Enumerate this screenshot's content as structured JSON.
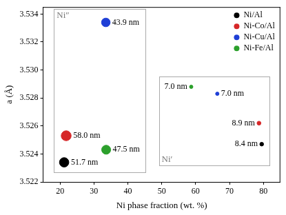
{
  "chart_data": {
    "type": "scatter",
    "x_label": "Ni phase fraction (wt. %)",
    "y_label": "a (Å)",
    "xlim": [
      15,
      85
    ],
    "xticks": [
      20,
      30,
      40,
      50,
      60,
      70,
      80
    ],
    "ylim": [
      3.522,
      3.5345
    ],
    "yticks": [
      3.522,
      3.524,
      3.526,
      3.528,
      {
        "value": 3.53,
        "label": "3.530"
      },
      3.532,
      3.534
    ],
    "grid": false,
    "legend": "upper right",
    "marker": "circle",
    "series": [
      {
        "name": "Ni/Al",
        "color": "#000000",
        "x": [
          21.2,
          79.5
        ],
        "values": [
          3.5234,
          3.5247
        ],
        "sizes": [
          51.7,
          8.4
        ],
        "point_labels": [
          "51.7 nm",
          "8.4 nm"
        ],
        "phases": [
          "Ni″",
          "Ni′"
        ]
      },
      {
        "name": "Ni-Co/Al",
        "color": "#d62728",
        "x": [
          21.8,
          78.7
        ],
        "values": [
          3.5253,
          3.5262
        ],
        "sizes": [
          58.0,
          8.9
        ],
        "point_labels": [
          "58.0 nm",
          "8.9 nm"
        ],
        "phases": [
          "Ni″",
          "Ni′"
        ]
      },
      {
        "name": "Ni-Cu/Al",
        "color": "#1f3fd6",
        "x": [
          33.5,
          66.4
        ],
        "values": [
          3.5334,
          3.5283
        ],
        "sizes": [
          43.9,
          7.0
        ],
        "point_labels": [
          "43.9 nm",
          "7.0 nm"
        ],
        "phases": [
          "Ni″",
          "Ni′"
        ]
      },
      {
        "name": "Ni-Fe/Al",
        "color": "#2ca02c",
        "x": [
          33.6,
          58.7
        ],
        "values": [
          3.5243,
          3.5288
        ],
        "sizes": [
          47.5,
          7.0
        ],
        "point_labels": [
          "47.5 nm",
          "7.0 nm"
        ],
        "phases": [
          "Ni″",
          "Ni′"
        ]
      }
    ]
  }
}
